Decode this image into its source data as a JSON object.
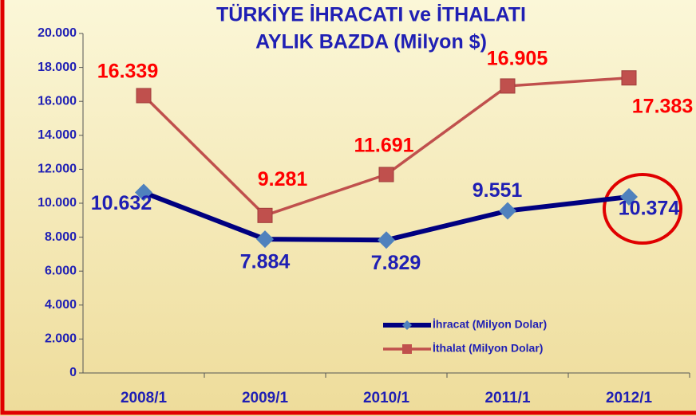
{
  "chart_data": {
    "type": "line",
    "title": [
      "TÜRKİYE İHRACATI ve İTHALATI",
      "AYLIK BAZDA (Milyon $)"
    ],
    "categories": [
      "2008/1",
      "2009/1",
      "2010/1",
      "2011/1",
      "2012/1"
    ],
    "series": [
      {
        "name": "İhracat (Milyon Dolar)",
        "color": "#000080",
        "marker_color": "#4F81BD",
        "label_color": "#1F1FB4",
        "values": [
          10632,
          7884,
          7829,
          9551,
          10374
        ],
        "value_labels": [
          "10.632",
          "7.884",
          "7.829",
          "9.551",
          "10.374"
        ]
      },
      {
        "name": "İthalat (Milyon Dolar)",
        "color": "#C0504D",
        "marker_color": "#C0504D",
        "label_color": "#FF0000",
        "values": [
          16339,
          9281,
          11691,
          16905,
          17383
        ],
        "value_labels": [
          "16.339",
          "9.281",
          "11.691",
          "16.905",
          "17.383"
        ]
      }
    ],
    "ylim": [
      0,
      20000
    ],
    "yticks": [
      0,
      {
        "value": 2000,
        "label": "2.000"
      },
      {
        "value": 4000,
        "label": "4.000"
      },
      {
        "value": 6000,
        "label": "6.000"
      },
      {
        "value": 8000,
        "label": "8.000"
      },
      {
        "value": 10000,
        "label": "10.000"
      },
      {
        "value": 12000,
        "label": "12.000"
      },
      {
        "value": 14000,
        "label": "14.000"
      },
      {
        "value": 16000,
        "label": "16.000"
      },
      {
        "value": 18000,
        "label": "18.000"
      },
      {
        "value": 20000,
        "label": "20.000"
      }
    ],
    "legend": "lower right"
  }
}
